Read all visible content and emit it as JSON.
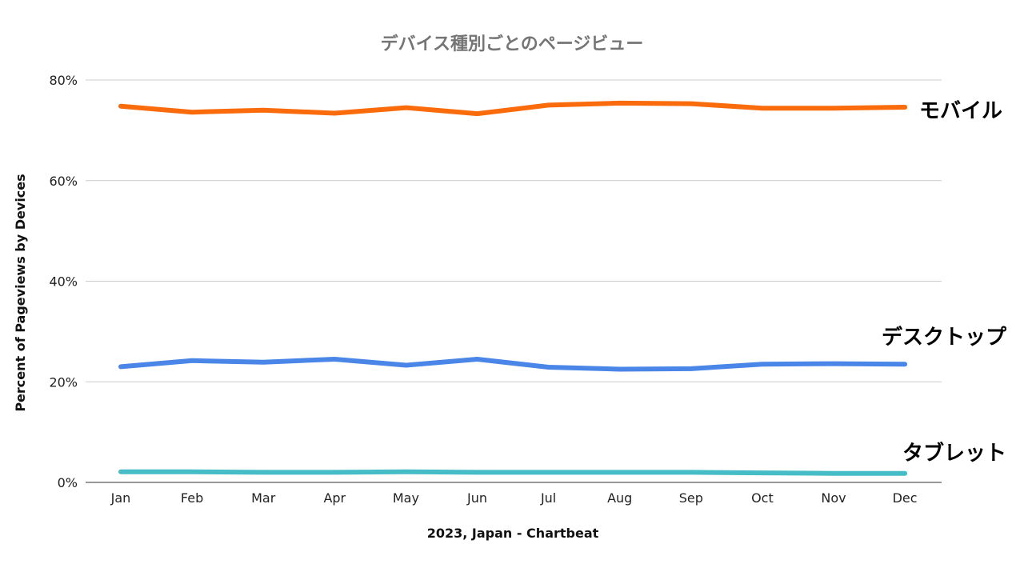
{
  "chart_data": {
    "type": "line",
    "title": "デバイス種別ごとのページビュー",
    "xlabel": "2023, Japan - Chartbeat",
    "ylabel": "Percent of Pageviews by Devices",
    "categories": [
      "Jan",
      "Feb",
      "Mar",
      "Apr",
      "May",
      "Jun",
      "Jul",
      "Aug",
      "Sep",
      "Oct",
      "Nov",
      "Dec"
    ],
    "ylim": [
      0,
      80
    ],
    "yticks": [
      "0%",
      "20%",
      "40%",
      "60%",
      "80%"
    ],
    "ytick_values": [
      0,
      20,
      40,
      60,
      80
    ],
    "grid": true,
    "legend": "inline labels at right end of each line",
    "series": [
      {
        "name": "モバイル",
        "color": "#fa6b0c",
        "values": [
          74.8,
          73.6,
          74.0,
          73.4,
          74.5,
          73.3,
          75.0,
          75.4,
          75.3,
          74.4,
          74.4,
          74.6
        ]
      },
      {
        "name": "デスクトップ",
        "color": "#4a86e8",
        "values": [
          23.0,
          24.2,
          23.9,
          24.5,
          23.3,
          24.5,
          22.9,
          22.5,
          22.6,
          23.5,
          23.6,
          23.5
        ]
      },
      {
        "name": "タブレット",
        "color": "#46bdc6",
        "values": [
          2.1,
          2.1,
          2.0,
          2.0,
          2.1,
          2.0,
          2.0,
          2.0,
          2.0,
          1.9,
          1.8,
          1.8
        ]
      }
    ]
  }
}
